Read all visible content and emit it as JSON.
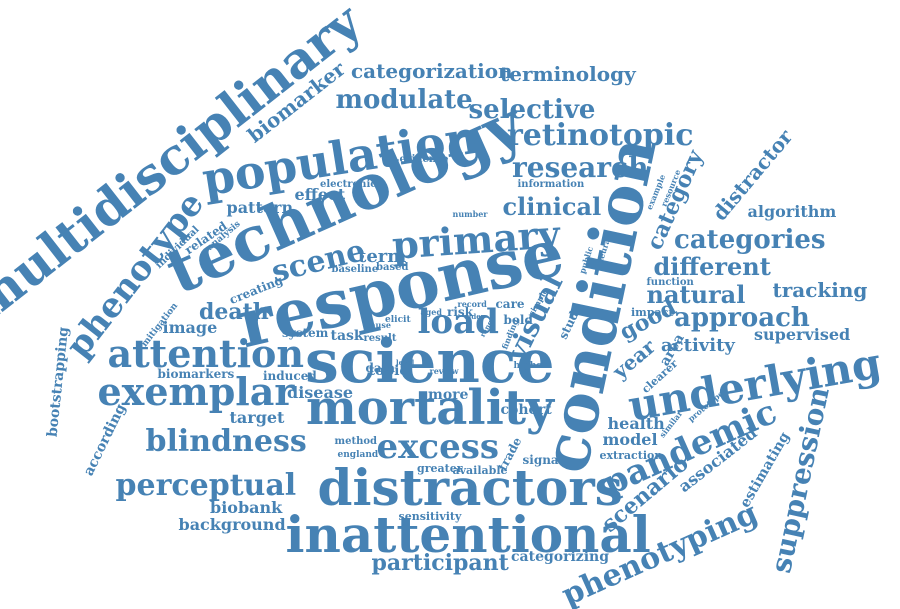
{
  "title": "Word cloud",
  "accent_color": "#4682b4",
  "words": [
    {
      "text": "technology",
      "weight": 10
    },
    {
      "text": "response",
      "weight": 10
    },
    {
      "text": "science",
      "weight": 9
    },
    {
      "text": "condition",
      "weight": 9
    },
    {
      "text": "multidisciplinary",
      "weight": 9
    },
    {
      "text": "mortality",
      "weight": 8
    },
    {
      "text": "distractors",
      "weight": 8
    },
    {
      "text": "inattentional",
      "weight": 8
    },
    {
      "text": "population",
      "weight": 8
    },
    {
      "text": "underlying",
      "weight": 7
    },
    {
      "text": "primary",
      "weight": 7
    },
    {
      "text": "attention",
      "weight": 7
    },
    {
      "text": "exemplar",
      "weight": 7
    },
    {
      "text": "pandemic",
      "weight": 6
    },
    {
      "text": "blindness",
      "weight": 6
    },
    {
      "text": "excess",
      "weight": 6
    },
    {
      "text": "perceptual",
      "weight": 6
    },
    {
      "text": "phenotype",
      "weight": 6
    },
    {
      "text": "phenotyping",
      "weight": 6
    },
    {
      "text": "load",
      "weight": 6
    },
    {
      "text": "scene",
      "weight": 6
    },
    {
      "text": "suppression",
      "weight": 5
    },
    {
      "text": "retinotopic",
      "weight": 5
    },
    {
      "text": "research",
      "weight": 5
    },
    {
      "text": "modulate",
      "weight": 5
    },
    {
      "text": "selective",
      "weight": 5
    },
    {
      "text": "categories",
      "weight": 5
    },
    {
      "text": "approach",
      "weight": 5
    },
    {
      "text": "different",
      "weight": 5
    },
    {
      "text": "natural",
      "weight": 5
    },
    {
      "text": "clinical",
      "weight": 5
    },
    {
      "text": "visual",
      "weight": 5
    },
    {
      "text": "category",
      "weight": 4
    },
    {
      "text": "scenario",
      "weight": 4
    },
    {
      "text": "participant",
      "weight": 4
    },
    {
      "text": "death",
      "weight": 4
    },
    {
      "text": "good",
      "weight": 4
    },
    {
      "text": "terminology",
      "weight": 4
    },
    {
      "text": "categorization",
      "weight": 4
    },
    {
      "text": "biomarker",
      "weight": 4
    },
    {
      "text": "distractor",
      "weight": 4
    },
    {
      "text": "tracking",
      "weight": 4
    },
    {
      "text": "year",
      "weight": 4
    },
    {
      "text": "term",
      "weight": 4
    },
    {
      "text": "bootstrapping",
      "weight": 3
    },
    {
      "text": "activity",
      "weight": 3
    },
    {
      "text": "algorithm",
      "weight": 3
    },
    {
      "text": "associated",
      "weight": 3
    },
    {
      "text": "estimating",
      "weight": 3
    },
    {
      "text": "supervised",
      "weight": 3
    },
    {
      "text": "model",
      "weight": 3
    },
    {
      "text": "health",
      "weight": 3
    },
    {
      "text": "biobank",
      "weight": 3
    },
    {
      "text": "background",
      "weight": 3
    },
    {
      "text": "target",
      "weight": 3
    },
    {
      "text": "disease",
      "weight": 3
    },
    {
      "text": "image",
      "weight": 3
    },
    {
      "text": "effect",
      "weight": 3
    },
    {
      "text": "pattern",
      "weight": 3
    },
    {
      "text": "according",
      "weight": 3
    },
    {
      "text": "area",
      "weight": 3
    },
    {
      "text": "categorizing",
      "weight": 2
    },
    {
      "text": "cohort",
      "weight": 2
    },
    {
      "text": "more",
      "weight": 2
    },
    {
      "text": "topic",
      "weight": 2
    },
    {
      "text": "task",
      "weight": 2
    },
    {
      "text": "system",
      "weight": 2
    },
    {
      "text": "biomarkers",
      "weight": 2
    },
    {
      "text": "induced",
      "weight": 2
    },
    {
      "text": "creating",
      "weight": 2
    },
    {
      "text": "related",
      "weight": 2
    },
    {
      "text": "signal",
      "weight": 2
    },
    {
      "text": "trade",
      "weight": 2
    },
    {
      "text": "sensitivity",
      "weight": 2
    },
    {
      "text": "greater",
      "weight": 2
    },
    {
      "text": "available",
      "weight": 2
    },
    {
      "text": "extraction",
      "weight": 2
    },
    {
      "text": "impact",
      "weight": 2
    },
    {
      "text": "function",
      "weight": 2
    },
    {
      "text": "clearer",
      "weight": 2
    },
    {
      "text": "information",
      "weight": 2
    },
    {
      "text": "evidence",
      "weight": 2
    },
    {
      "text": "electronic",
      "weight": 2
    },
    {
      "text": "risk",
      "weight": 2
    },
    {
      "text": "data",
      "weight": 2
    },
    {
      "text": "care",
      "weight": 2
    },
    {
      "text": "bold",
      "weight": 2
    },
    {
      "text": "study",
      "weight": 2
    },
    {
      "text": "public",
      "weight": 1
    },
    {
      "text": "neural",
      "weight": 1
    },
    {
      "text": "example",
      "weight": 1
    },
    {
      "text": "resource",
      "weight": 1
    },
    {
      "text": "number",
      "weight": 1
    },
    {
      "text": "individual",
      "weight": 1
    },
    {
      "text": "analysis",
      "weight": 1
    },
    {
      "text": "baseline",
      "weight": 1
    },
    {
      "text": "based",
      "weight": 1
    },
    {
      "text": "mitigation",
      "weight": 1
    },
    {
      "text": "result",
      "weight": 1
    },
    {
      "text": "elicit",
      "weight": 1
    },
    {
      "text": "cause",
      "weight": 1
    },
    {
      "text": "record",
      "weight": 1
    },
    {
      "text": "aged",
      "weight": 1
    },
    {
      "text": "older",
      "weight": 1
    },
    {
      "text": "simple",
      "weight": 1
    },
    {
      "text": "range",
      "weight": 1
    },
    {
      "text": "finding",
      "weight": 1
    },
    {
      "text": "higher",
      "weight": 1
    },
    {
      "text": "level",
      "weight": 1
    },
    {
      "text": "review",
      "weight": 1
    },
    {
      "text": "method",
      "weight": 1
    },
    {
      "text": "england",
      "weight": 1
    },
    {
      "text": "similar",
      "weight": 1
    },
    {
      "text": "prototype",
      "weight": 1
    }
  ]
}
